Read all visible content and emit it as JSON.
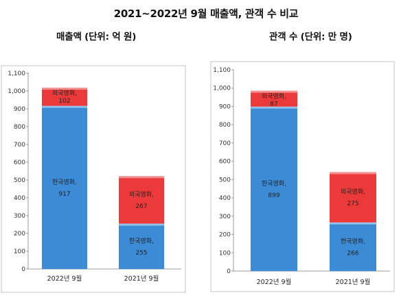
{
  "title": "2021~2022년 9월 매출액, 관객 수 비교",
  "colors": {
    "domestic": "#3b8bd6",
    "foreign": "#ec3a3a",
    "axis": "#9a9a9a",
    "frame": "#c4c4c4"
  },
  "chart_data": [
    {
      "type": "bar",
      "stacked": true,
      "title": "매출액 (단위: 억 원)",
      "categories": [
        "2022년 9월",
        "2021년 9월"
      ],
      "series": [
        {
          "name": "한국영화,",
          "values": [
            917,
            255
          ]
        },
        {
          "name": "외국영화,",
          "values": [
            102,
            267
          ]
        }
      ],
      "ylim": [
        0,
        1100
      ],
      "yticks": [
        "0",
        "100",
        "200",
        "300",
        "400",
        "500",
        "600",
        "700",
        "800",
        "900",
        "1,000",
        "1,100"
      ],
      "grid": false,
      "legend": "none"
    },
    {
      "type": "bar",
      "stacked": true,
      "title": "관객 수 (단위: 만 명)",
      "categories": [
        "2022년 9월",
        "2021년 9월"
      ],
      "series": [
        {
          "name": "한국영화,",
          "values": [
            899,
            266
          ]
        },
        {
          "name": "외국영화,",
          "values": [
            87,
            275
          ]
        }
      ],
      "ylim": [
        0,
        1100
      ],
      "yticks": [
        "0",
        "100",
        "200",
        "300",
        "400",
        "500",
        "600",
        "700",
        "800",
        "900",
        "1,000",
        "1,100"
      ],
      "grid": false,
      "legend": "none"
    }
  ]
}
